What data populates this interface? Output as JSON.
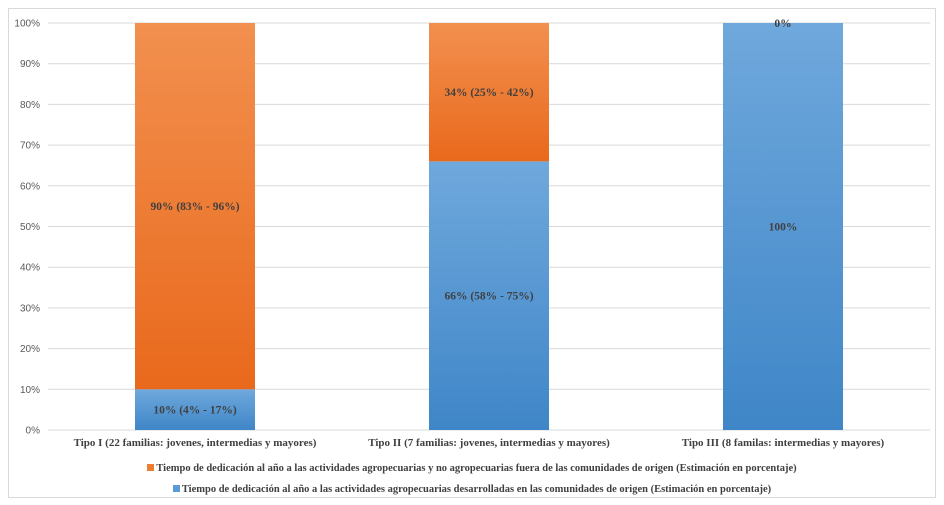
{
  "chart_data": {
    "type": "bar",
    "stacked": true,
    "title": "",
    "xlabel": "",
    "ylabel": "",
    "ylim": [
      0,
      100
    ],
    "yticks": [
      "0%",
      "10%",
      "20%",
      "30%",
      "40%",
      "50%",
      "60%",
      "70%",
      "80%",
      "90%",
      "100%"
    ],
    "categories": [
      "Tipo I (22 familias: jovenes, intermedias y mayores)",
      "Tipo II (7 familias: jovenes, intermedias y mayores)",
      "Tipo III (8 familas: intermedias y mayores)"
    ],
    "series": [
      {
        "name": "Tiempo de dedicación al año a las actividades agropecuarias desarrolladas en las comunidades de origen (Estimación en porcentaje)",
        "color": "#5b9bd5",
        "values": [
          10,
          66,
          100
        ],
        "labels": [
          "10% (4% - 17%)",
          "66% (58% - 75%)",
          "100%"
        ]
      },
      {
        "name": "Tiempo de dedicación al año a las actividades agropecuarias y no agropecuarias fuera de las comunidades de origen (Estimación en porcentaje)",
        "color": "#ed7d31",
        "values": [
          90,
          34,
          0
        ],
        "labels": [
          "90% (83% - 96%)",
          "34% (25% - 42%)",
          "0%"
        ]
      }
    ],
    "grid": true,
    "legend_position": "bottom"
  }
}
